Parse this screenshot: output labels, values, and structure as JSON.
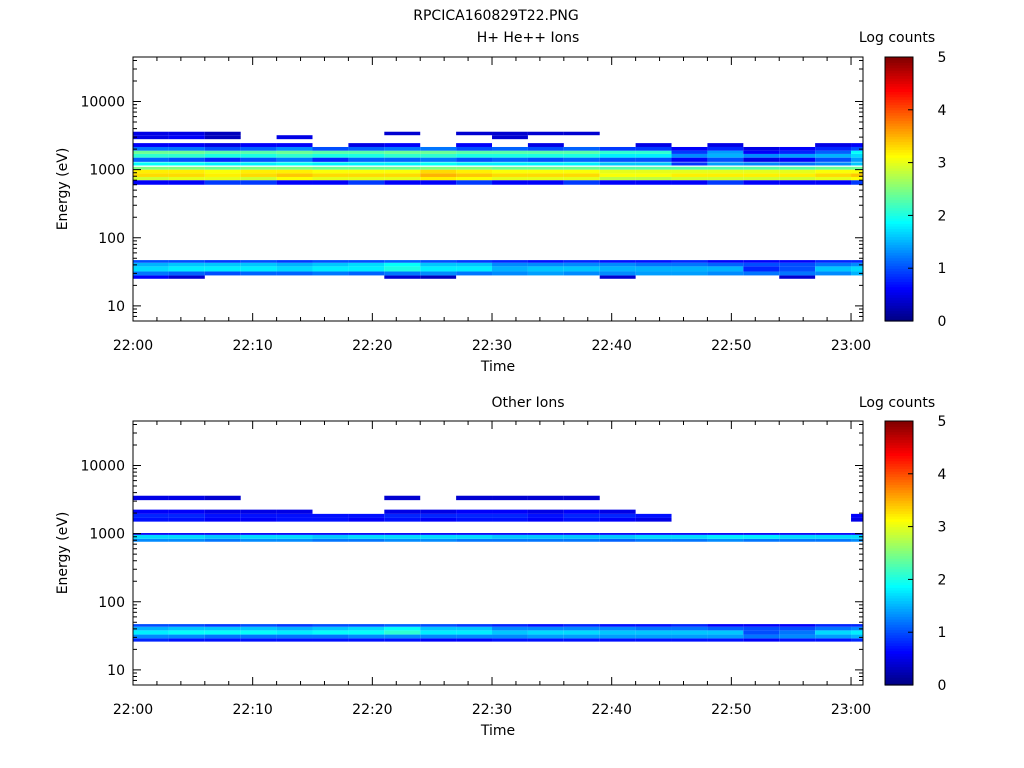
{
  "figure": {
    "title": "RPCICA160829T22.PNG"
  },
  "chart_data": [
    {
      "type": "heatmap",
      "title": "H+ He++ Ions",
      "xlabel": "Time",
      "ylabel": "Energy (eV)",
      "x_ticks": [
        "22:00",
        "22:10",
        "22:20",
        "22:30",
        "22:40",
        "22:50",
        "23:00"
      ],
      "x_range": [
        "22:00",
        "23:01"
      ],
      "y_scale": "log",
      "y_ticks": [
        10,
        100,
        1000,
        10000
      ],
      "y_range": [
        6,
        45000
      ],
      "colorbar": {
        "label": "Log counts",
        "ticks": [
          0,
          1,
          2,
          3,
          4,
          5
        ],
        "range": [
          0,
          5
        ],
        "colormap": "jet"
      },
      "time_bins": [
        "22:00",
        "22:03",
        "22:06",
        "22:09",
        "22:12",
        "22:15",
        "22:18",
        "22:21",
        "22:24",
        "22:27",
        "22:30",
        "22:33",
        "22:36",
        "22:39",
        "22:42",
        "22:45",
        "22:48",
        "22:51",
        "22:54",
        "22:57",
        "23:00"
      ],
      "bands": [
        {
          "e": [
            600,
            700
          ],
          "v": [
            0.6,
            0.6,
            0.9,
            0.9,
            0.6,
            0.6,
            0.9,
            0.6,
            0.6,
            0.9,
            0.6,
            0.6,
            0.9,
            0.6,
            0.6,
            0.6,
            0.9,
            0.6,
            0.6,
            0.6,
            0.9
          ]
        },
        {
          "e": [
            700,
            780
          ],
          "v": [
            2.9,
            3.0,
            3.0,
            2.9,
            3.1,
            3.0,
            3.0,
            3.0,
            3.2,
            3.1,
            3.0,
            3.0,
            3.0,
            2.8,
            2.8,
            2.9,
            2.9,
            2.9,
            2.9,
            3.0,
            3.1
          ]
        },
        {
          "e": [
            780,
            880
          ],
          "v": [
            3.3,
            3.3,
            3.2,
            3.3,
            3.4,
            3.3,
            3.3,
            3.3,
            3.5,
            3.4,
            3.3,
            3.3,
            3.3,
            3.1,
            3.1,
            3.2,
            3.2,
            3.2,
            3.2,
            3.3,
            3.4
          ]
        },
        {
          "e": [
            880,
            1000
          ],
          "v": [
            3.2,
            3.2,
            3.1,
            3.2,
            3.2,
            3.1,
            3.1,
            3.1,
            3.3,
            3.2,
            3.1,
            3.1,
            3.1,
            3.0,
            3.0,
            3.0,
            3.0,
            3.0,
            3.0,
            3.1,
            3.1
          ]
        },
        {
          "e": [
            1000,
            1100
          ],
          "v": [
            2.5,
            2.5,
            2.4,
            2.5,
            2.5,
            2.4,
            2.4,
            2.4,
            2.5,
            2.5,
            2.4,
            2.4,
            2.4,
            2.3,
            2.3,
            2.3,
            2.3,
            2.3,
            2.3,
            2.4,
            2.4
          ]
        },
        {
          "e": [
            1150,
            1280
          ],
          "v": [
            1.9,
            1.9,
            1.8,
            1.8,
            1.9,
            1.8,
            1.8,
            1.8,
            1.9,
            1.8,
            1.8,
            1.8,
            1.8,
            1.6,
            1.6,
            0.9,
            1.4,
            1.3,
            1.2,
            1.3,
            1.6
          ]
        },
        {
          "e": [
            1300,
            1500
          ],
          "v": [
            1.1,
            1.0,
            0.8,
            1.0,
            1.2,
            0.8,
            1.1,
            1.1,
            1.2,
            1.0,
            1.1,
            1.0,
            1.1,
            1.0,
            1.0,
            0.6,
            1.0,
            0.5,
            0.6,
            1.0,
            1.4
          ]
        },
        {
          "e": [
            1500,
            1700
          ],
          "v": [
            2.1,
            2.1,
            2.0,
            2.0,
            2.1,
            2.0,
            2.0,
            2.1,
            2.1,
            2.0,
            2.0,
            2.0,
            2.0,
            1.8,
            1.8,
            1.3,
            1.5,
            1.3,
            1.4,
            1.5,
            1.7
          ]
        },
        {
          "e": [
            1700,
            1900
          ],
          "v": [
            2.4,
            2.4,
            2.3,
            2.3,
            2.4,
            2.3,
            2.3,
            2.4,
            2.4,
            2.3,
            2.3,
            2.3,
            2.3,
            2.1,
            2.1,
            0.9,
            1.4,
            0.6,
            0.8,
            1.1,
            1.9
          ]
        },
        {
          "e": [
            1900,
            2150
          ],
          "v": [
            1.2,
            1.2,
            1.0,
            1.1,
            1.3,
            1.0,
            1.1,
            1.2,
            1.2,
            1.0,
            1.1,
            1.0,
            1.1,
            0.9,
            0.9,
            0.6,
            0.8,
            0.5,
            0.6,
            0.8,
            1.0
          ]
        },
        {
          "e": [
            2150,
            2450
          ],
          "v": [
            0.6,
            0.6,
            0.5,
            0.6,
            0.6,
            0,
            0.5,
            0.6,
            0,
            0.6,
            0,
            0.5,
            0,
            0,
            0.5,
            0,
            0.5,
            0,
            0,
            0.5,
            0.6
          ]
        },
        {
          "e": [
            2800,
            3200
          ],
          "v": [
            0.5,
            0.6,
            0.3,
            0,
            0.5,
            0,
            0,
            0,
            0,
            0,
            0.4,
            0,
            0,
            0,
            0,
            0,
            0,
            0,
            0,
            0,
            0
          ]
        },
        {
          "e": [
            3200,
            3600
          ],
          "v": [
            0.5,
            0.5,
            0.3,
            0,
            0,
            0,
            0,
            0.4,
            0,
            0.4,
            0.4,
            0.4,
            0.4,
            0,
            0,
            0,
            0,
            0,
            0,
            0,
            0
          ]
        },
        {
          "e": [
            25,
            28
          ],
          "v": [
            0.6,
            0.4,
            0,
            0,
            0,
            0,
            0,
            0.4,
            0.3,
            0,
            0,
            0,
            0,
            0.4,
            0,
            0,
            0,
            0,
            0.4,
            0,
            0
          ]
        },
        {
          "e": [
            28,
            32
          ],
          "v": [
            1.2,
            1.1,
            1.0,
            1.1,
            1.1,
            1.2,
            1.1,
            1.2,
            1.3,
            1.2,
            1.3,
            1.4,
            1.3,
            1.3,
            1.4,
            1.4,
            1.3,
            1.2,
            1.2,
            1.3,
            1.5
          ]
        },
        {
          "e": [
            32,
            38
          ],
          "v": [
            1.7,
            1.8,
            1.8,
            1.8,
            1.7,
            1.8,
            1.8,
            2.0,
            1.8,
            1.8,
            1.5,
            1.6,
            1.6,
            1.5,
            1.5,
            1.5,
            1.5,
            0.8,
            1.0,
            1.6,
            1.7
          ]
        },
        {
          "e": [
            38,
            43
          ],
          "v": [
            1.5,
            1.6,
            1.6,
            1.6,
            1.5,
            1.6,
            1.7,
            1.9,
            1.6,
            1.6,
            1.3,
            1.3,
            1.3,
            1.3,
            1.2,
            1.2,
            1.1,
            1.0,
            1.0,
            1.2,
            1.3
          ]
        },
        {
          "e": [
            43,
            47
          ],
          "v": [
            1.0,
            1.0,
            0.9,
            1.0,
            0.9,
            1.0,
            1.0,
            1.1,
            1.0,
            0.9,
            0.8,
            0.7,
            0.8,
            0.7,
            0.7,
            0.8,
            0.6,
            0.6,
            0.6,
            0.8,
            0.8
          ]
        }
      ]
    },
    {
      "type": "heatmap",
      "title": "Other Ions",
      "xlabel": "Time",
      "ylabel": "Energy (eV)",
      "x_ticks": [
        "22:00",
        "22:10",
        "22:20",
        "22:30",
        "22:40",
        "22:50",
        "23:00"
      ],
      "x_range": [
        "22:00",
        "23:01"
      ],
      "y_scale": "log",
      "y_ticks": [
        10,
        100,
        1000,
        10000
      ],
      "y_range": [
        6,
        45000
      ],
      "colorbar": {
        "label": "Log counts",
        "ticks": [
          0,
          1,
          2,
          3,
          4,
          5
        ],
        "range": [
          0,
          5
        ],
        "colormap": "jet"
      },
      "time_bins": [
        "22:00",
        "22:03",
        "22:06",
        "22:09",
        "22:12",
        "22:15",
        "22:18",
        "22:21",
        "22:24",
        "22:27",
        "22:30",
        "22:33",
        "22:36",
        "22:39",
        "22:42",
        "22:45",
        "22:48",
        "22:51",
        "22:54",
        "22:57",
        "23:00"
      ],
      "bands": [
        {
          "e": [
            760,
            840
          ],
          "v": [
            1.3,
            1.3,
            1.2,
            1.3,
            1.3,
            1.2,
            1.2,
            1.3,
            1.3,
            1.2,
            1.2,
            1.2,
            1.2,
            1.1,
            1.2,
            1.2,
            1.3,
            1.2,
            1.2,
            1.2,
            1.3
          ]
        },
        {
          "e": [
            840,
            960
          ],
          "v": [
            1.7,
            1.7,
            1.6,
            1.7,
            1.7,
            1.6,
            1.7,
            1.7,
            1.7,
            1.7,
            1.6,
            1.6,
            1.6,
            1.6,
            1.7,
            1.7,
            1.8,
            1.8,
            1.7,
            1.7,
            1.7
          ]
        },
        {
          "e": [
            960,
            1020
          ],
          "v": [
            0.6,
            0.6,
            0.6,
            0.6,
            0.6,
            0.6,
            0.6,
            0.6,
            0.6,
            0.6,
            0.6,
            0.6,
            0.6,
            0.6,
            0.6,
            0.6,
            0.6,
            0.6,
            0.6,
            0.6,
            0.6
          ]
        },
        {
          "e": [
            1500,
            1700
          ],
          "v": [
            0.7,
            0.7,
            0.6,
            0.6,
            0.7,
            0.7,
            0.6,
            0.7,
            0.6,
            0.7,
            0.7,
            0.6,
            0.7,
            0.6,
            0.5,
            0,
            0,
            0,
            0,
            0,
            0.5
          ]
        },
        {
          "e": [
            1700,
            1950
          ],
          "v": [
            0.8,
            0.8,
            0.7,
            0.7,
            0.7,
            0.7,
            0.7,
            0.8,
            0.8,
            0.8,
            0.8,
            0.7,
            0.8,
            0.8,
            0.7,
            0,
            0,
            0,
            0,
            0,
            0.6
          ]
        },
        {
          "e": [
            1950,
            2250
          ],
          "v": [
            0.6,
            0.6,
            0.5,
            0.5,
            0.5,
            0,
            0,
            0.5,
            0.5,
            0.6,
            0.6,
            0.5,
            0.6,
            0.5,
            0,
            0,
            0,
            0,
            0,
            0,
            0
          ]
        },
        {
          "e": [
            3100,
            3600
          ],
          "v": [
            0.5,
            0.5,
            0.4,
            0,
            0,
            0,
            0,
            0.4,
            0,
            0.4,
            0.4,
            0.4,
            0.4,
            0,
            0,
            0,
            0,
            0,
            0,
            0,
            0
          ]
        },
        {
          "e": [
            26,
            29
          ],
          "v": [
            0.8,
            0.7,
            0.7,
            0.7,
            0.7,
            0.7,
            0.7,
            0.7,
            0.6,
            0.6,
            0.7,
            0.7,
            0.7,
            0.7,
            0.7,
            0.7,
            0.7,
            0.6,
            0.7,
            0.7,
            0.8
          ]
        },
        {
          "e": [
            29,
            33
          ],
          "v": [
            1.3,
            1.3,
            1.2,
            1.2,
            1.2,
            1.2,
            1.3,
            1.3,
            1.3,
            1.3,
            1.3,
            1.4,
            1.4,
            1.4,
            1.4,
            1.4,
            1.4,
            1.2,
            1.3,
            1.4,
            1.5
          ]
        },
        {
          "e": [
            33,
            38
          ],
          "v": [
            1.8,
            1.9,
            1.9,
            1.9,
            1.8,
            1.9,
            1.9,
            2.1,
            1.8,
            1.8,
            1.6,
            1.7,
            1.7,
            1.6,
            1.6,
            1.6,
            1.6,
            1.0,
            1.2,
            1.7,
            1.8
          ]
        },
        {
          "e": [
            38,
            43
          ],
          "v": [
            1.5,
            1.6,
            1.6,
            1.6,
            1.5,
            1.6,
            1.7,
            1.9,
            1.6,
            1.6,
            1.3,
            1.3,
            1.3,
            1.3,
            1.2,
            1.2,
            1.1,
            1.0,
            1.0,
            1.2,
            1.3
          ]
        },
        {
          "e": [
            43,
            47
          ],
          "v": [
            1.0,
            1.0,
            0.9,
            1.0,
            0.9,
            1.0,
            1.0,
            1.1,
            1.0,
            0.9,
            0.8,
            0.7,
            0.8,
            0.7,
            0.7,
            0.8,
            0.6,
            0.6,
            0.6,
            0.8,
            0.8
          ]
        }
      ]
    }
  ]
}
